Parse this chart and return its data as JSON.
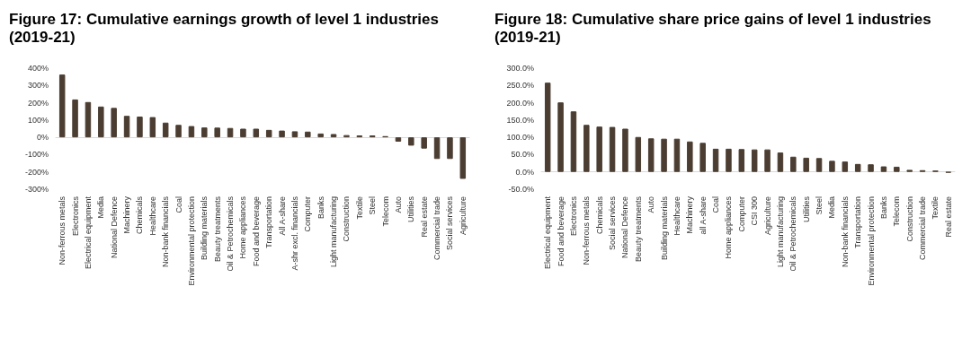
{
  "chart_data": [
    {
      "type": "bar",
      "title": "Figure 17: Cumulative earnings growth of level 1 industries (2019-21)",
      "categories": [
        "Non-ferrous metals",
        "Electronics",
        "Electrical equipment",
        "Media",
        "National Defence",
        "Machinery",
        "Chemicals",
        "Healthcare",
        "Non-bank financials",
        "Coal",
        "Environmental protection",
        "Building materials",
        "Beauty treatments",
        "Oil & Petrochemicals",
        "Home appliances",
        "Food and beverage",
        "Transportation",
        "All A-share",
        "A-shr excl. financials",
        "Computer",
        "Banks",
        "Light manufacturing",
        "Construction",
        "Textile",
        "Steel",
        "Telecom",
        "Auto",
        "Utilities",
        "Real estate",
        "Commercial trade",
        "Social services",
        "Agriculture"
      ],
      "values": [
        363,
        219,
        204,
        178,
        170,
        124,
        120,
        117,
        85,
        72,
        65,
        57,
        56,
        54,
        50,
        50,
        43,
        39,
        35,
        33,
        22,
        19,
        13,
        11,
        11,
        7,
        -25,
        -48,
        -65,
        -125,
        -125,
        -240
      ],
      "color": "#4b3d31",
      "ylim": [
        -300,
        400
      ],
      "yticks": [
        {
          "value": -300,
          "label": "-300%"
        },
        {
          "value": -200,
          "label": "-200%"
        },
        {
          "value": -100,
          "label": "-100%"
        },
        {
          "value": 0,
          "label": "0%"
        },
        {
          "value": 100,
          "label": "100%"
        },
        {
          "value": 200,
          "label": "200%"
        },
        {
          "value": 300,
          "label": "300%"
        },
        {
          "value": 400,
          "label": "400%"
        }
      ]
    },
    {
      "type": "bar",
      "title": "Figure 18: Cumulative share price gains of level 1 industries (2019-21)",
      "categories": [
        "Electrical equipment",
        "Food and beverage",
        "Electronics",
        "Non-ferrous metals",
        "Chemicals",
        "Social services",
        "National Defence",
        "Beauty treatments",
        "Auto",
        "Building materials",
        "Healthcare",
        "Machinery",
        "all A-share",
        "Coal",
        "Home appliances",
        "Computer",
        "CSI 300",
        "Agriculture",
        "Light manufacturing",
        "Oil & Petrochemicals",
        "Utilities",
        "Steel",
        "Media",
        "Non-bank financials",
        "Transportation",
        "Environmental protection",
        "Banks",
        "Telecom",
        "Construction",
        "Commercial trade",
        "Textile",
        "Real estate"
      ],
      "values": [
        258,
        201,
        175,
        136,
        131,
        130,
        125,
        101,
        97,
        96,
        96,
        88,
        84,
        67,
        67,
        66,
        65,
        65,
        56,
        44,
        41,
        40,
        32,
        30,
        23,
        22,
        16,
        15,
        6,
        5,
        4,
        -2
      ],
      "color": "#4b3d31",
      "ylim": [
        -50,
        300
      ],
      "yticks": [
        {
          "value": -50,
          "label": "-50.0%"
        },
        {
          "value": 0,
          "label": "0.0%"
        },
        {
          "value": 50,
          "label": "50.0%"
        },
        {
          "value": 100,
          "label": "100.0%"
        },
        {
          "value": 150,
          "label": "150.0%"
        },
        {
          "value": 200,
          "label": "200.0%"
        },
        {
          "value": 250,
          "label": "250.0%"
        },
        {
          "value": 300,
          "label": "300.0%"
        }
      ]
    }
  ]
}
